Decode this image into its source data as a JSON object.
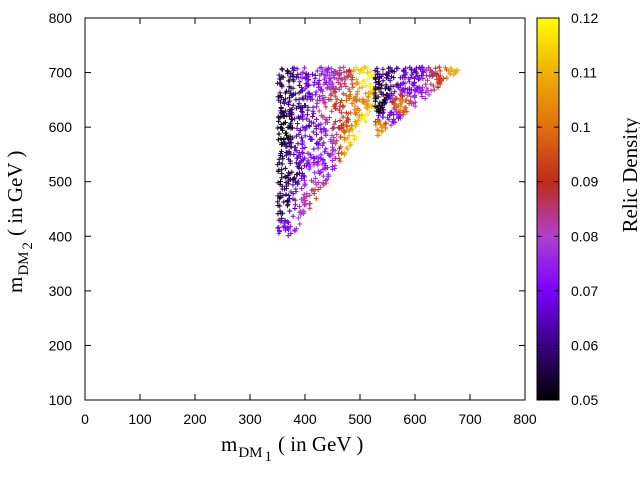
{
  "chart_data": {
    "type": "scatter",
    "title": "",
    "xlabel": {
      "main": "m",
      "sub": "DM",
      "subsub": "1",
      "suffix": "( in GeV )"
    },
    "ylabel": {
      "main": "m",
      "sub": "DM",
      "subsub": "2",
      "suffix": "( in GeV )"
    },
    "colorbar_label": "Relic Density",
    "xlim": [
      0,
      800
    ],
    "ylim": [
      100,
      800
    ],
    "clim": [
      0.05,
      0.12
    ],
    "xticks": [
      "0",
      "100",
      "200",
      "300",
      "400",
      "500",
      "600",
      "700",
      "800"
    ],
    "yticks": [
      "100",
      "200",
      "300",
      "400",
      "500",
      "600",
      "700",
      "800"
    ],
    "cticks": [
      "0.05",
      "0.06",
      "0.07",
      "0.08",
      "0.09",
      "0.1",
      "0.11",
      "0.12"
    ],
    "grid": false,
    "colormap": [
      "#000000",
      "#3a0080",
      "#7a00ff",
      "#b040d0",
      "#c02a1a",
      "#e07010",
      "#f0b000",
      "#ffff00"
    ],
    "marker": "+",
    "regions": [
      {
        "name": "left",
        "points": [
          {
            "x": 370,
            "y": 410,
            "c": 0.07
          },
          {
            "x": 395,
            "y": 420,
            "c": 0.08
          },
          {
            "x": 420,
            "y": 430,
            "c": 0.085
          },
          {
            "x": 440,
            "y": 450,
            "c": 0.095
          },
          {
            "x": 460,
            "y": 475,
            "c": 0.105
          },
          {
            "x": 480,
            "y": 505,
            "c": 0.11
          },
          {
            "x": 500,
            "y": 540,
            "c": 0.115
          },
          {
            "x": 515,
            "y": 575,
            "c": 0.118
          },
          {
            "x": 525,
            "y": 610,
            "c": 0.12
          },
          {
            "x": 355,
            "y": 450,
            "c": 0.055
          },
          {
            "x": 360,
            "y": 520,
            "c": 0.055
          },
          {
            "x": 358,
            "y": 600,
            "c": 0.05
          },
          {
            "x": 365,
            "y": 680,
            "c": 0.055
          },
          {
            "x": 380,
            "y": 640,
            "c": 0.06
          },
          {
            "x": 400,
            "y": 600,
            "c": 0.065
          },
          {
            "x": 420,
            "y": 560,
            "c": 0.07
          },
          {
            "x": 440,
            "y": 520,
            "c": 0.075
          },
          {
            "x": 410,
            "y": 690,
            "c": 0.068
          },
          {
            "x": 440,
            "y": 700,
            "c": 0.075
          },
          {
            "x": 460,
            "y": 630,
            "c": 0.09
          },
          {
            "x": 470,
            "y": 690,
            "c": 0.085
          },
          {
            "x": 490,
            "y": 650,
            "c": 0.1
          },
          {
            "x": 505,
            "y": 700,
            "c": 0.115
          },
          {
            "x": 520,
            "y": 690,
            "c": 0.12
          }
        ]
      },
      {
        "name": "right",
        "points": [
          {
            "x": 528,
            "y": 640,
            "c": 0.05
          },
          {
            "x": 540,
            "y": 670,
            "c": 0.055
          },
          {
            "x": 555,
            "y": 690,
            "c": 0.06
          },
          {
            "x": 560,
            "y": 620,
            "c": 0.07
          },
          {
            "x": 590,
            "y": 680,
            "c": 0.07
          },
          {
            "x": 610,
            "y": 650,
            "c": 0.075
          },
          {
            "x": 630,
            "y": 690,
            "c": 0.085
          },
          {
            "x": 650,
            "y": 690,
            "c": 0.095
          },
          {
            "x": 675,
            "y": 705,
            "c": 0.11
          },
          {
            "x": 540,
            "y": 595,
            "c": 0.105
          },
          {
            "x": 575,
            "y": 640,
            "c": 0.1
          },
          {
            "x": 600,
            "y": 700,
            "c": 0.065
          }
        ]
      }
    ]
  }
}
